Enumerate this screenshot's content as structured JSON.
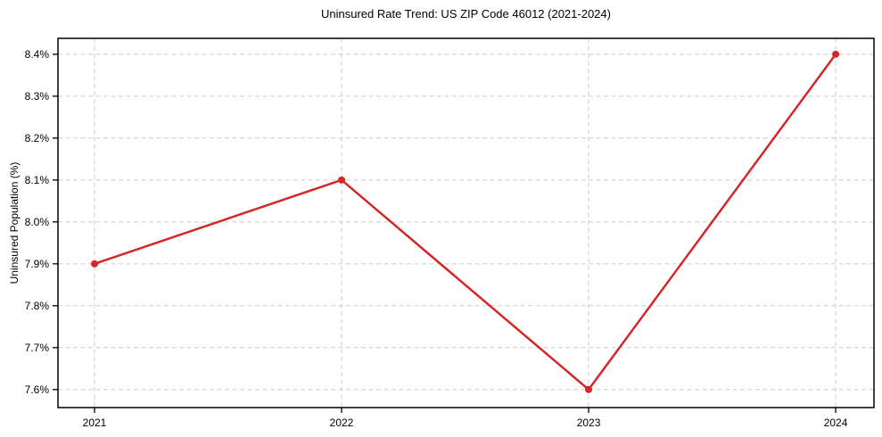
{
  "chart_data": {
    "type": "line",
    "title": "Uninsured Rate Trend: US ZIP Code 46012 (2021-2024)",
    "xlabel": "",
    "ylabel": "Uninsured Population (%)",
    "x": [
      2021,
      2022,
      2023,
      2024
    ],
    "x_tick_labels": [
      "2021",
      "2022",
      "2023",
      "2024"
    ],
    "values": [
      7.9,
      8.1,
      7.6,
      8.4
    ],
    "y_ticks": [
      7.6,
      7.7,
      7.8,
      7.9,
      8.0,
      8.1,
      8.2,
      8.3,
      8.4
    ],
    "y_tick_labels": [
      "7.6%",
      "7.7%",
      "7.8%",
      "7.9%",
      "8.0%",
      "8.1%",
      "8.2%",
      "8.3%",
      "8.4%"
    ],
    "xlim": [
      2020.852,
      2024.155
    ],
    "ylim": [
      7.557,
      8.438
    ],
    "grid": true,
    "legend": "none",
    "marker": "circle",
    "colors": {
      "line": "#d62728",
      "marker": "#d62728",
      "grid": "#cccccc",
      "axis": "#000000",
      "text": "#000000",
      "background": "#ffffff"
    }
  }
}
